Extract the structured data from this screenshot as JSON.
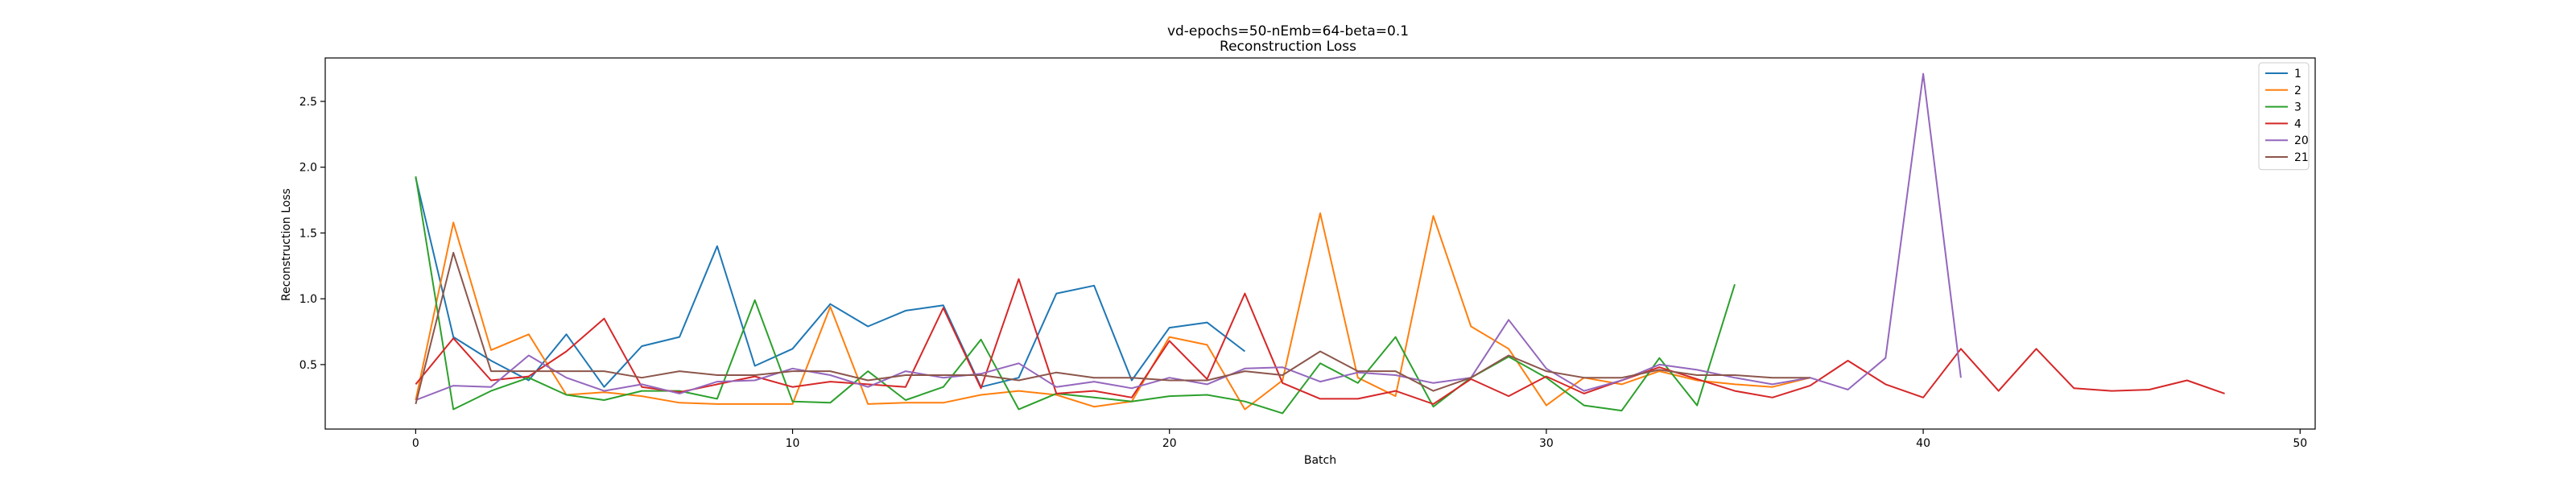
{
  "chart_data": {
    "type": "line",
    "title": "vd-epochs=50-nEmb=64-beta=0.1",
    "subtitle": "Reconstruction Loss",
    "xlabel": "Batch",
    "ylabel": "Reconstruction Loss",
    "xlim": [
      -2.4,
      50.4
    ],
    "ylim": [
      0.01,
      2.83
    ],
    "xticks": [
      0,
      10,
      20,
      30,
      40,
      50
    ],
    "yticks": [
      0.5,
      1.0,
      1.5,
      2.0,
      2.5
    ],
    "xtick_labels": [
      "0",
      "10",
      "20",
      "30",
      "40",
      "50"
    ],
    "ytick_labels": [
      "0.5",
      "1.0",
      "1.5",
      "2.0",
      "2.5"
    ],
    "grid": false,
    "legend_position": "top-right",
    "series": [
      {
        "name": "1",
        "color": "#1f77b4",
        "x": [
          0,
          1,
          2,
          3,
          4,
          5,
          6,
          7,
          8,
          9,
          10,
          11,
          12,
          13,
          14,
          15,
          16,
          17,
          18,
          19,
          20,
          21,
          22
        ],
        "values": [
          1.92,
          0.71,
          0.53,
          0.38,
          0.73,
          0.33,
          0.64,
          0.71,
          1.4,
          0.49,
          0.62,
          0.96,
          0.79,
          0.91,
          0.95,
          0.33,
          0.4,
          1.04,
          1.1,
          0.38,
          0.78,
          0.82,
          0.6
        ]
      },
      {
        "name": "2",
        "color": "#ff7f0e",
        "x": [
          0,
          1,
          2,
          3,
          4,
          5,
          6,
          7,
          8,
          9,
          10,
          11,
          12,
          13,
          14,
          15,
          16,
          17,
          18,
          19,
          20,
          21,
          22,
          23,
          24,
          25,
          26,
          27,
          28,
          29,
          30,
          31,
          32,
          33,
          34,
          35,
          36,
          37
        ],
        "values": [
          0.23,
          1.58,
          0.61,
          0.73,
          0.27,
          0.29,
          0.26,
          0.21,
          0.2,
          0.2,
          0.2,
          0.94,
          0.2,
          0.21,
          0.21,
          0.27,
          0.3,
          0.27,
          0.18,
          0.22,
          0.71,
          0.65,
          0.16,
          0.38,
          1.65,
          0.4,
          0.26,
          1.63,
          0.79,
          0.62,
          0.19,
          0.4,
          0.35,
          0.45,
          0.38,
          0.35,
          0.33,
          0.4
        ]
      },
      {
        "name": "3",
        "color": "#2ca02c",
        "x": [
          0,
          1,
          2,
          3,
          4,
          5,
          6,
          7,
          8,
          9,
          10,
          11,
          12,
          13,
          14,
          15,
          16,
          17,
          18,
          19,
          20,
          21,
          22,
          23,
          24,
          25,
          26,
          27,
          28,
          29,
          30,
          31,
          32,
          33,
          34,
          35
        ],
        "values": [
          1.93,
          0.16,
          0.3,
          0.4,
          0.27,
          0.23,
          0.3,
          0.3,
          0.24,
          0.99,
          0.22,
          0.21,
          0.45,
          0.23,
          0.33,
          0.69,
          0.16,
          0.28,
          0.25,
          0.22,
          0.26,
          0.27,
          0.22,
          0.13,
          0.51,
          0.36,
          0.71,
          0.18,
          0.4,
          0.56,
          0.4,
          0.19,
          0.15,
          0.55,
          0.19,
          1.11
        ]
      },
      {
        "name": "4",
        "color": "#d62728",
        "x": [
          0,
          1,
          2,
          3,
          4,
          5,
          6,
          7,
          8,
          9,
          10,
          11,
          12,
          13,
          14,
          15,
          16,
          17,
          18,
          19,
          20,
          21,
          22,
          23,
          24,
          25,
          26,
          27,
          28,
          29,
          30,
          31,
          32,
          33,
          34,
          35,
          36,
          37,
          38,
          39,
          40,
          41,
          42,
          43,
          44,
          45,
          46,
          47,
          48
        ],
        "values": [
          0.35,
          0.7,
          0.38,
          0.41,
          0.6,
          0.85,
          0.33,
          0.29,
          0.35,
          0.41,
          0.33,
          0.37,
          0.35,
          0.33,
          0.93,
          0.32,
          1.15,
          0.28,
          0.3,
          0.25,
          0.68,
          0.39,
          1.04,
          0.36,
          0.24,
          0.24,
          0.3,
          0.2,
          0.39,
          0.26,
          0.41,
          0.28,
          0.38,
          0.48,
          0.39,
          0.3,
          0.25,
          0.34,
          0.53,
          0.35,
          0.25,
          0.62,
          0.3,
          0.62,
          0.32,
          0.3,
          0.31,
          0.38,
          0.28
        ]
      },
      {
        "name": "20",
        "color": "#9467bd",
        "x": [
          0,
          1,
          2,
          3,
          4,
          5,
          6,
          7,
          8,
          9,
          10,
          11,
          12,
          13,
          14,
          15,
          16,
          17,
          18,
          19,
          20,
          21,
          22,
          23,
          24,
          25,
          26,
          27,
          28,
          29,
          30,
          31,
          32,
          33,
          34,
          35,
          36,
          37,
          38,
          39,
          40,
          41
        ],
        "values": [
          0.23,
          0.34,
          0.33,
          0.57,
          0.4,
          0.3,
          0.35,
          0.28,
          0.37,
          0.38,
          0.47,
          0.42,
          0.33,
          0.45,
          0.4,
          0.43,
          0.51,
          0.33,
          0.37,
          0.32,
          0.4,
          0.35,
          0.47,
          0.48,
          0.37,
          0.44,
          0.42,
          0.36,
          0.4,
          0.84,
          0.47,
          0.3,
          0.38,
          0.5,
          0.46,
          0.4,
          0.35,
          0.4,
          0.31,
          0.55,
          2.71,
          0.4
        ]
      },
      {
        "name": "21",
        "color": "#8c564b",
        "x": [
          0,
          1,
          2,
          3,
          4,
          5,
          6,
          7,
          8,
          9,
          10,
          11,
          12,
          13,
          14,
          15,
          16,
          17,
          18,
          19,
          20,
          21,
          22,
          23,
          24,
          25,
          26,
          27,
          28,
          29,
          30,
          31,
          32,
          33,
          34,
          35,
          36,
          37
        ],
        "values": [
          0.2,
          1.35,
          0.45,
          0.45,
          0.45,
          0.45,
          0.4,
          0.45,
          0.42,
          0.42,
          0.45,
          0.45,
          0.38,
          0.42,
          0.42,
          0.42,
          0.38,
          0.44,
          0.4,
          0.4,
          0.38,
          0.38,
          0.45,
          0.42,
          0.6,
          0.45,
          0.45,
          0.3,
          0.4,
          0.57,
          0.45,
          0.4,
          0.4,
          0.46,
          0.42,
          0.42,
          0.4,
          0.4
        ]
      }
    ]
  }
}
